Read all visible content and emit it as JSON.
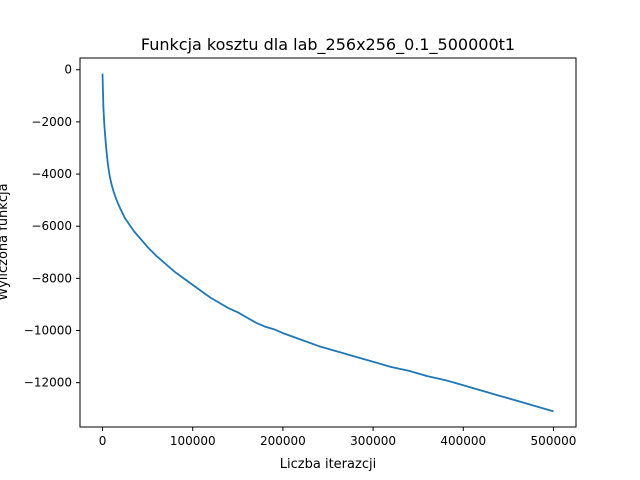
{
  "chart_data": {
    "type": "line",
    "title": "Funkcja kosztu dla lab_256x256_0.1_500000t1",
    "xlabel": "Liczba iterazcji",
    "ylabel": "Wyliczona funkcja",
    "xlim": [
      -25000,
      525000
    ],
    "ylim": [
      -13700,
      450
    ],
    "xticks": [
      0,
      100000,
      200000,
      300000,
      400000,
      500000
    ],
    "xtick_labels": [
      "0",
      "100000",
      "200000",
      "300000",
      "400000",
      "500000"
    ],
    "yticks": [
      0,
      -2000,
      -4000,
      -6000,
      -8000,
      -10000,
      -12000
    ],
    "ytick_labels": [
      "0",
      "−2000",
      "−4000",
      "−6000",
      "−8000",
      "−10000",
      "−12000"
    ],
    "grid": false,
    "legend": "none",
    "line_color": "#1f77b4",
    "series": [
      {
        "x": [
          0,
          500,
          1000,
          2000,
          3000,
          4000,
          5000,
          6000,
          8000,
          10000,
          12000,
          15000,
          18000,
          20000,
          25000,
          30000,
          35000,
          40000,
          45000,
          50000,
          60000,
          70000,
          80000,
          90000,
          100000,
          110000,
          120000,
          130000,
          140000,
          150000,
          160000,
          170000,
          180000,
          190000,
          200000,
          220000,
          240000,
          260000,
          280000,
          300000,
          320000,
          340000,
          360000,
          380000,
          400000,
          420000,
          440000,
          460000,
          480000,
          500000
        ],
        "y": [
          -150,
          -900,
          -1450,
          -2100,
          -2600,
          -3000,
          -3350,
          -3650,
          -4100,
          -4400,
          -4650,
          -4950,
          -5200,
          -5350,
          -5700,
          -5950,
          -6200,
          -6400,
          -6600,
          -6800,
          -7150,
          -7450,
          -7750,
          -8000,
          -8250,
          -8500,
          -8750,
          -8950,
          -9150,
          -9300,
          -9500,
          -9700,
          -9850,
          -9950,
          -10100,
          -10350,
          -10600,
          -10800,
          -11000,
          -11200,
          -11400,
          -11550,
          -11750,
          -11900,
          -12100,
          -12300,
          -12500,
          -12700,
          -12900,
          -13100
        ]
      }
    ]
  }
}
